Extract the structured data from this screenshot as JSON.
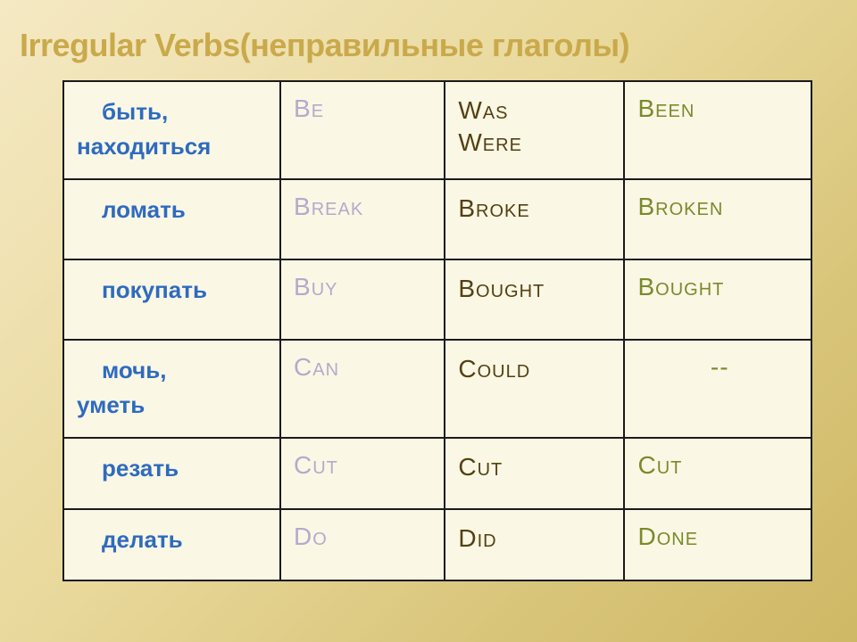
{
  "title": "Irregular Verbs(неправильные глаголы)",
  "colors": {
    "title": "#c9a94a",
    "russian": "#2e6bbf",
    "base_form": "#b1accb",
    "past_form": "#524112",
    "participle": "#7a8a2b",
    "cell_bg": "#fbf7e5",
    "border": "#1a1a1a",
    "bg_gradient": [
      "#f5e9c4",
      "#e8d89a",
      "#d9c57a",
      "#cfb865"
    ]
  },
  "fontsizes": {
    "title": 36,
    "russian": 26,
    "verb": 28
  },
  "columns": [
    "russian",
    "base",
    "past",
    "participle"
  ],
  "col_widths_pct": [
    29,
    22,
    24,
    25
  ],
  "rows": [
    {
      "ru_line1": "быть,",
      "ru_line2": "находиться",
      "base": "Be",
      "past_line1": "Was",
      "past_line2": "Were",
      "pp": "Been",
      "height": "tall"
    },
    {
      "ru_line1": "ломать",
      "ru_line2": "",
      "base": "Break",
      "past_line1": "Broke",
      "past_line2": "",
      "pp": "Broken",
      "height": "mid"
    },
    {
      "ru_line1": "покупать",
      "ru_line2": "",
      "base": "Buy",
      "past_line1": "Bought",
      "past_line2": "",
      "pp": "Bought",
      "height": "mid"
    },
    {
      "ru_line1": "мочь,",
      "ru_line2": "уметь",
      "base": "Can",
      "past_line1": "Could",
      "past_line2": "",
      "pp": "--",
      "height": "tall",
      "pp_center": true
    },
    {
      "ru_line1": "резать",
      "ru_line2": "",
      "base": "Cut",
      "past_line1": "Cut",
      "past_line2": "",
      "pp": "Cut",
      "height": "short"
    },
    {
      "ru_line1": "делать",
      "ru_line2": "",
      "base": "Do",
      "past_line1": "Did",
      "past_line2": "",
      "pp": "Done",
      "height": "short"
    }
  ]
}
